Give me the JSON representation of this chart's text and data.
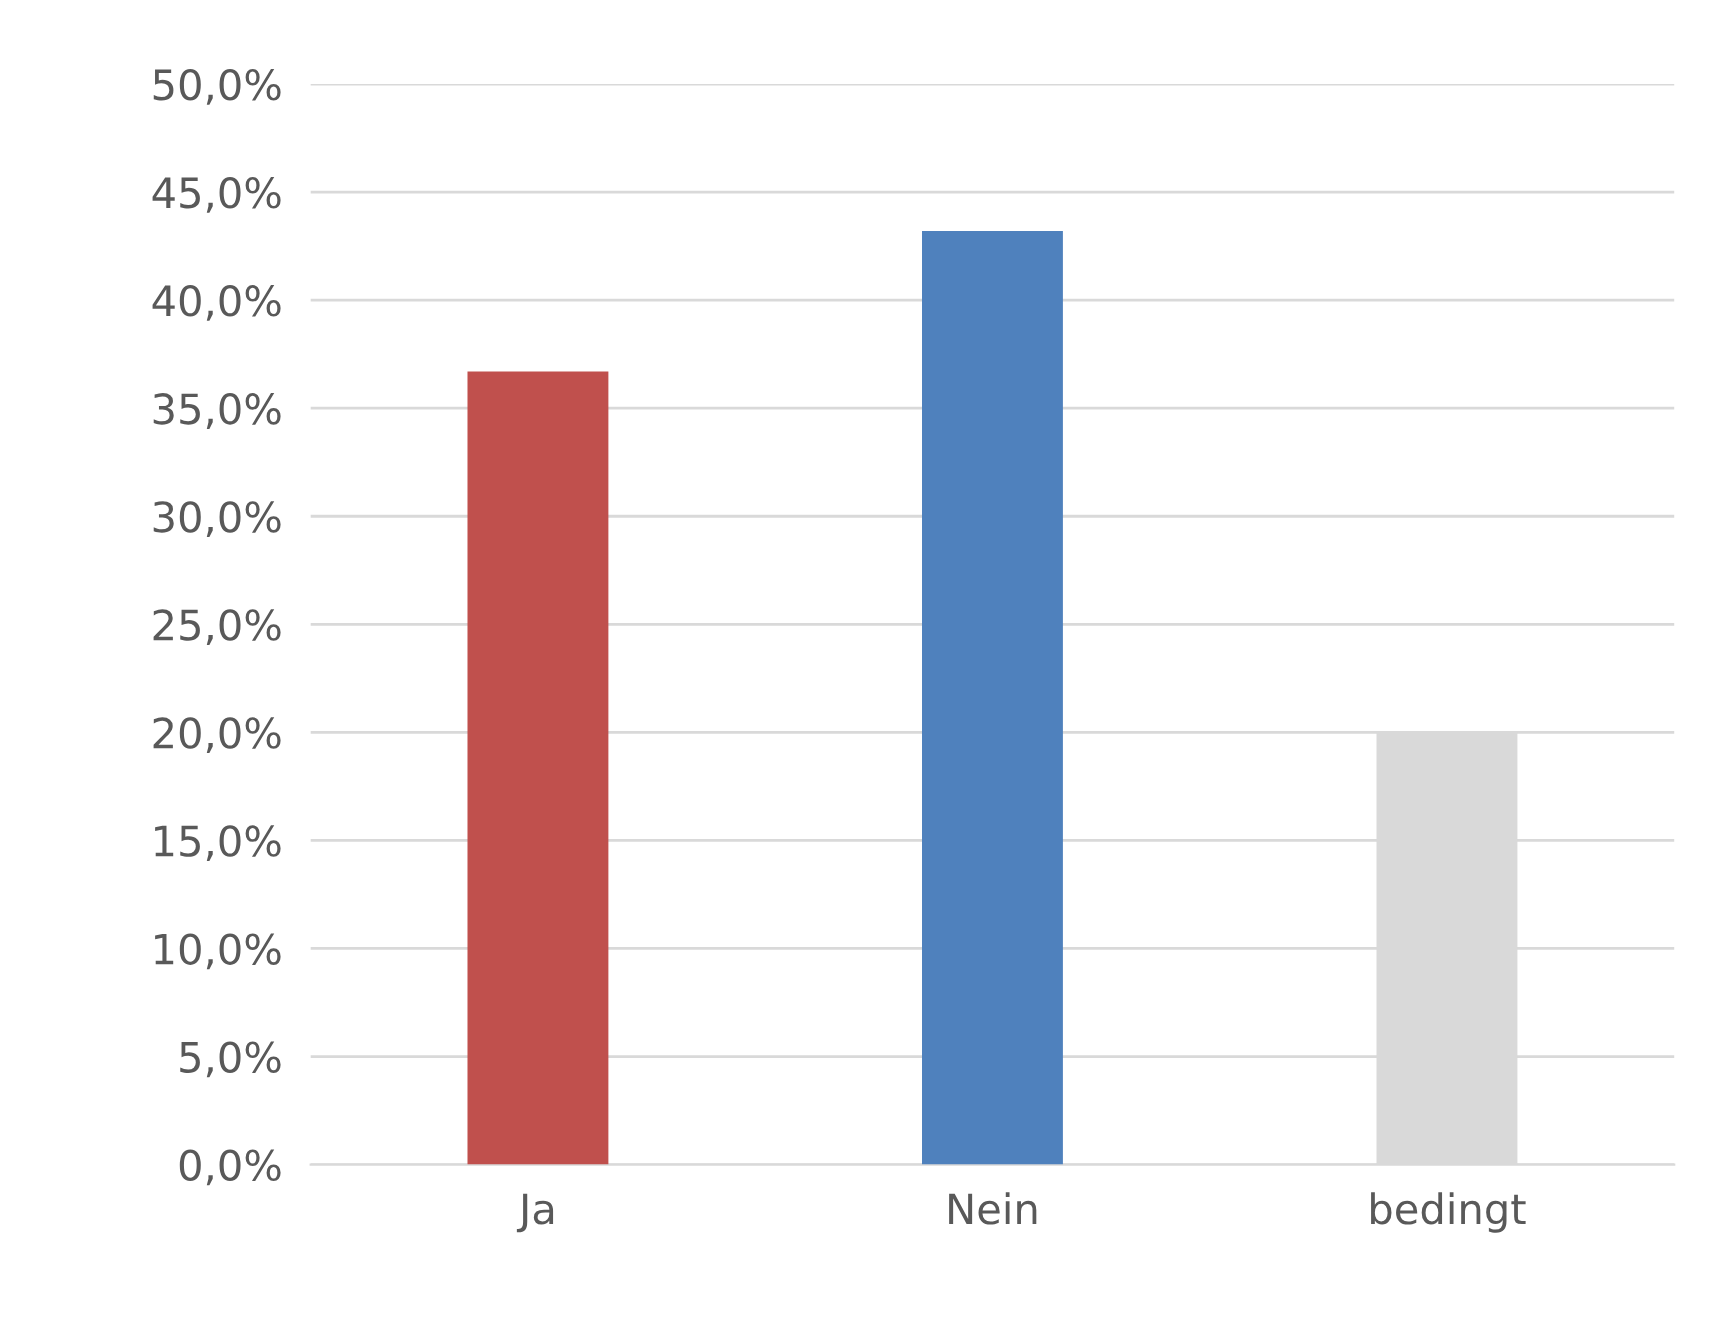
{
  "chart_data": {
    "type": "bar",
    "categories": [
      "Ja",
      "Nein",
      "bedingt"
    ],
    "values": [
      36.7,
      43.2,
      20.0
    ],
    "colors": [
      "#c0504d",
      "#4f81bd",
      "#d9d9d9"
    ],
    "ylim": [
      0,
      50
    ],
    "yticks": [
      {
        "value": 0,
        "label": "0,0%"
      },
      {
        "value": 5,
        "label": "5,0%"
      },
      {
        "value": 10,
        "label": "10,0%"
      },
      {
        "value": 15,
        "label": "15,0%"
      },
      {
        "value": 20,
        "label": "20,0%"
      },
      {
        "value": 25,
        "label": "25,0%"
      },
      {
        "value": 30,
        "label": "30,0%"
      },
      {
        "value": 35,
        "label": "35,0%"
      },
      {
        "value": 40,
        "label": "40,0%"
      },
      {
        "value": 45,
        "label": "45,0%"
      },
      {
        "value": 50,
        "label": "50,0%"
      }
    ],
    "grid": "y"
  }
}
